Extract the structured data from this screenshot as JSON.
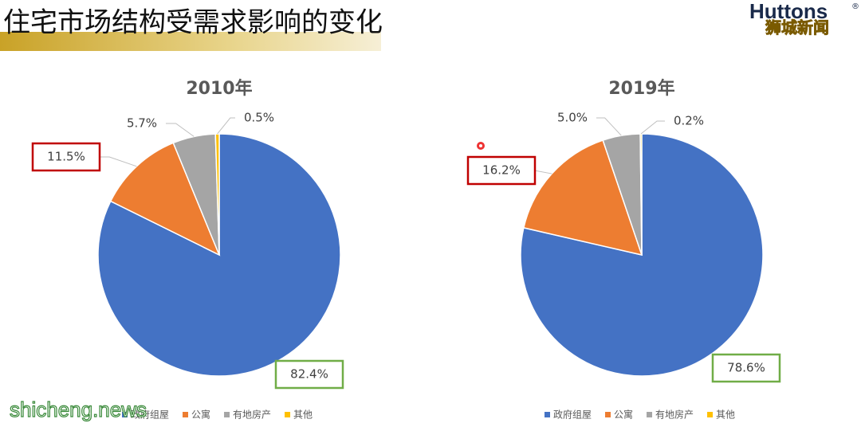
{
  "header": {
    "title": "住宅市场结构受需求影响的变化",
    "logo": "Huttons",
    "logo_mark": "®",
    "badge": "狮城新闻",
    "watermark": "shicheng.news"
  },
  "chart_data": [
    {
      "type": "pie",
      "title": "2010年",
      "categories": [
        "政府组屋",
        "公寓",
        "有地房产",
        "其他"
      ],
      "values": [
        82.4,
        11.5,
        5.7,
        0.5
      ],
      "value_labels": [
        "82.4%",
        "11.5%",
        "5.7%",
        "0.5%"
      ],
      "colors": [
        "#4472c4",
        "#ed7d31",
        "#a5a5a5",
        "#ffc000"
      ],
      "label_frames": [
        "#70ad47",
        "#c00000",
        null,
        null
      ],
      "legend": "bottom"
    },
    {
      "type": "pie",
      "title": "2019年",
      "categories": [
        "政府组屋",
        "公寓",
        "有地房产",
        "其他"
      ],
      "values": [
        78.6,
        16.2,
        5.0,
        0.2
      ],
      "value_labels": [
        "78.6%",
        "16.2%",
        "5.0%",
        "0.2%"
      ],
      "colors": [
        "#4472c4",
        "#ed7d31",
        "#a5a5a5",
        "#ffc000"
      ],
      "label_frames": [
        "#70ad47",
        "#c00000",
        null,
        null
      ],
      "legend": "bottom"
    }
  ]
}
